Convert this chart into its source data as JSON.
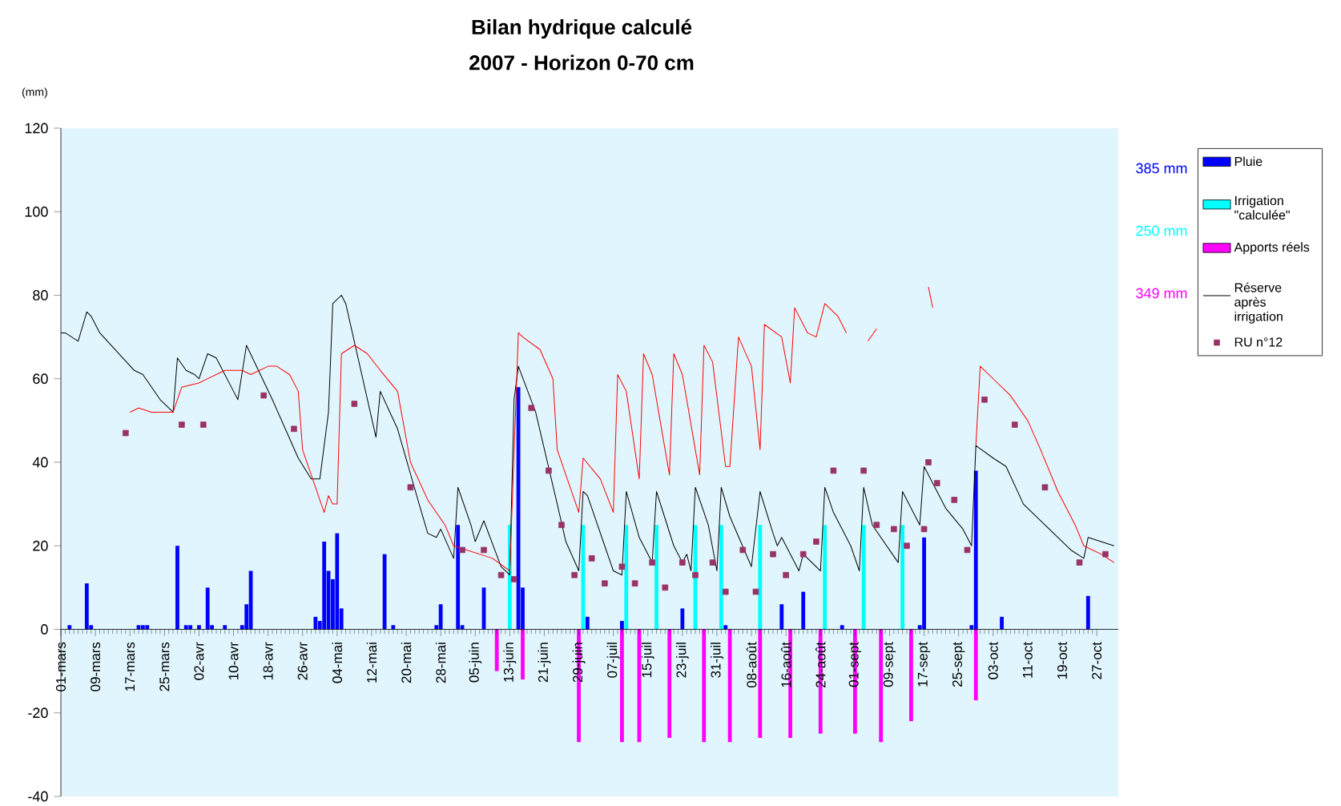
{
  "chart_data": {
    "type": "bar",
    "title": "Bilan hydrique calculé",
    "subtitle": "2007 - Horizon 0-70 cm",
    "ylabel": "(mm)",
    "annotations": [
      "385 mm",
      "250 mm",
      "349 mm"
    ],
    "legend": "right",
    "xlim": [
      "2007-03-01",
      "2007-11-01"
    ],
    "xticks": [
      {
        "value": "2007-03-01",
        "label": "01-mars"
      },
      {
        "value": "2007-03-09",
        "label": "09-mars"
      },
      {
        "value": "2007-03-17",
        "label": "17-mars"
      },
      {
        "value": "2007-03-25",
        "label": "25-mars"
      },
      {
        "value": "2007-04-02",
        "label": "02-avr"
      },
      {
        "value": "2007-04-10",
        "label": "10-avr"
      },
      {
        "value": "2007-04-18",
        "label": "18-avr"
      },
      {
        "value": "2007-04-26",
        "label": "26-avr"
      },
      {
        "value": "2007-05-04",
        "label": "04-mai"
      },
      {
        "value": "2007-05-12",
        "label": "12-mai"
      },
      {
        "value": "2007-05-20",
        "label": "20-mai"
      },
      {
        "value": "2007-05-28",
        "label": "28-mai"
      },
      {
        "value": "2007-06-05",
        "label": "05-juin"
      },
      {
        "value": "2007-06-13",
        "label": "13-juin"
      },
      {
        "value": "2007-06-21",
        "label": "21-juin"
      },
      {
        "value": "2007-06-29",
        "label": "29-juin"
      },
      {
        "value": "2007-07-07",
        "label": "07-juil"
      },
      {
        "value": "2007-07-15",
        "label": "15-juil"
      },
      {
        "value": "2007-07-23",
        "label": "23-juil"
      },
      {
        "value": "2007-07-31",
        "label": "31-juil"
      },
      {
        "value": "2007-08-08",
        "label": "08-août"
      },
      {
        "value": "2007-08-16",
        "label": "16-août"
      },
      {
        "value": "2007-08-24",
        "label": "24-août"
      },
      {
        "value": "2007-09-01",
        "label": "01-sept"
      },
      {
        "value": "2007-09-09",
        "label": "09-sept"
      },
      {
        "value": "2007-09-17",
        "label": "17-sept"
      },
      {
        "value": "2007-09-25",
        "label": "25-sept"
      },
      {
        "value": "2007-10-03",
        "label": "03-oct"
      },
      {
        "value": "2007-10-11",
        "label": "11-oct"
      },
      {
        "value": "2007-10-19",
        "label": "19-oct"
      },
      {
        "value": "2007-10-27",
        "label": "27-oct"
      }
    ],
    "ylim": [
      -40,
      120
    ],
    "yticks": [
      -40,
      -20,
      0,
      20,
      40,
      60,
      80,
      100,
      120
    ],
    "series": [
      {
        "name": "Pluie",
        "color": "#0000ff",
        "x": [
          "2007-03-03",
          "2007-03-07",
          "2007-03-08",
          "2007-03-19",
          "2007-03-20",
          "2007-03-21",
          "2007-03-28",
          "2007-03-30",
          "2007-03-31",
          "2007-04-02",
          "2007-04-04",
          "2007-04-05",
          "2007-04-08",
          "2007-04-12",
          "2007-04-13",
          "2007-04-14",
          "2007-04-29",
          "2007-04-30",
          "2007-05-01",
          "2007-05-02",
          "2007-05-03",
          "2007-05-04",
          "2007-05-05",
          "2007-05-15",
          "2007-05-17",
          "2007-05-27",
          "2007-05-28",
          "2007-06-01",
          "2007-06-02",
          "2007-06-07",
          "2007-06-15",
          "2007-06-16",
          "2007-07-01",
          "2007-07-09",
          "2007-07-23",
          "2007-08-02",
          "2007-08-15",
          "2007-08-20",
          "2007-08-29",
          "2007-09-16",
          "2007-09-17",
          "2007-09-28",
          "2007-09-29",
          "2007-10-05",
          "2007-10-25"
        ],
        "values": [
          1,
          11,
          1,
          1,
          1,
          1,
          20,
          1,
          1,
          1,
          10,
          1,
          1,
          1,
          6,
          14,
          3,
          2,
          21,
          14,
          12,
          23,
          5,
          18,
          1,
          1,
          6,
          25,
          1,
          10,
          58,
          10,
          3,
          2,
          5,
          1,
          6,
          9,
          1,
          1,
          22,
          1,
          38,
          3,
          8
        ]
      },
      {
        "name": "Irrigation \"calculée\"",
        "color": "#00ffff",
        "x": [
          "2007-06-13",
          "2007-06-30",
          "2007-07-10",
          "2007-07-17",
          "2007-07-26",
          "2007-08-01",
          "2007-08-10",
          "2007-08-25",
          "2007-09-03",
          "2007-09-12"
        ],
        "values": [
          25,
          25,
          25,
          25,
          25,
          25,
          25,
          25,
          25,
          25
        ]
      },
      {
        "name": "Apports réels",
        "color": "#ff00ff",
        "x": [
          "2007-06-10",
          "2007-06-16",
          "2007-06-29",
          "2007-07-09",
          "2007-07-13",
          "2007-07-20",
          "2007-07-28",
          "2007-08-03",
          "2007-08-10",
          "2007-08-17",
          "2007-08-24",
          "2007-09-01",
          "2007-09-07",
          "2007-09-14",
          "2007-09-29"
        ],
        "values": [
          -10,
          -12,
          -27,
          -27,
          -27,
          -26,
          -27,
          -27,
          -26,
          -26,
          -25,
          -25,
          -27,
          -22,
          -17
        ]
      },
      {
        "type": "line",
        "name": "Réserve après irrigation",
        "color": "#000000",
        "x": [
          "2007-03-01",
          "2007-03-02",
          "2007-03-05",
          "2007-03-07",
          "2007-03-08",
          "2007-03-10",
          "2007-03-18",
          "2007-03-20",
          "2007-03-24",
          "2007-03-27",
          "2007-03-28",
          "2007-03-30",
          "2007-04-01",
          "2007-04-02",
          "2007-04-04",
          "2007-04-06",
          "2007-04-10",
          "2007-04-11",
          "2007-04-13",
          "2007-04-19",
          "2007-04-25",
          "2007-04-28",
          "2007-04-30",
          "2007-05-02",
          "2007-05-03",
          "2007-05-05",
          "2007-05-06",
          "2007-05-13",
          "2007-05-14",
          "2007-05-18",
          "2007-05-23",
          "2007-05-25",
          "2007-05-27",
          "2007-05-28",
          "2007-05-31",
          "2007-06-01",
          "2007-06-04",
          "2007-06-05",
          "2007-06-07",
          "2007-06-11",
          "2007-06-13",
          "2007-06-14",
          "2007-06-15",
          "2007-06-19",
          "2007-06-24",
          "2007-06-26",
          "2007-06-29",
          "2007-06-30",
          "2007-07-01",
          "2007-07-05",
          "2007-07-07",
          "2007-07-09",
          "2007-07-10",
          "2007-07-13",
          "2007-07-16",
          "2007-07-17",
          "2007-07-21",
          "2007-07-23",
          "2007-07-24",
          "2007-07-25",
          "2007-07-26",
          "2007-07-29",
          "2007-07-31",
          "2007-08-01",
          "2007-08-03",
          "2007-08-08",
          "2007-08-10",
          "2007-08-13",
          "2007-08-14",
          "2007-08-15",
          "2007-08-18",
          "2007-08-19",
          "2007-08-20",
          "2007-08-24",
          "2007-08-25",
          "2007-08-27",
          "2007-08-31",
          "2007-09-02",
          "2007-09-03",
          "2007-09-05",
          "2007-09-11",
          "2007-09-12",
          "2007-09-16",
          "2007-09-17",
          "2007-09-22",
          "2007-09-26",
          "2007-09-28",
          "2007-09-29",
          "2007-10-03",
          "2007-10-06",
          "2007-10-10",
          "2007-10-16",
          "2007-10-21",
          "2007-10-24",
          "2007-10-25",
          "2007-10-28",
          "2007-10-31"
        ],
        "values": [
          71,
          71,
          69,
          76,
          75,
          71,
          62,
          61,
          55,
          52,
          65,
          62,
          61,
          60,
          66,
          65,
          57,
          55,
          68,
          55,
          41,
          36,
          36,
          52,
          78,
          80,
          78,
          46,
          57,
          48,
          30,
          23,
          22,
          24,
          17,
          34,
          25,
          21,
          26,
          15,
          13,
          55,
          63,
          52,
          30,
          21,
          14,
          33,
          32,
          20,
          14,
          13,
          33,
          22,
          16,
          33,
          20,
          16,
          18,
          14,
          34,
          25,
          14,
          34,
          27,
          15,
          33,
          23,
          20,
          22,
          16,
          14,
          18,
          14,
          34,
          28,
          20,
          14,
          34,
          25,
          16,
          33,
          25,
          39,
          29,
          24,
          20,
          44,
          41,
          39,
          30,
          24,
          19,
          17,
          22,
          21,
          20
        ]
      },
      {
        "type": "line",
        "color": "#ff0000",
        "x": [
          "2007-03-17",
          "2007-03-19",
          "2007-03-22",
          "2007-03-24",
          "2007-03-27",
          "2007-03-29",
          "2007-04-02",
          "2007-04-04",
          "2007-04-08",
          "2007-04-12",
          "2007-04-14",
          "2007-04-18",
          "2007-04-20",
          "2007-04-23",
          "2007-04-25",
          "2007-04-26",
          "2007-05-01",
          "2007-05-02",
          "2007-05-03",
          "2007-05-04",
          "2007-05-05",
          "2007-05-08",
          "2007-05-11",
          "2007-05-14",
          "2007-05-18",
          "2007-05-21",
          "2007-05-25",
          "2007-05-29",
          "2007-05-31",
          "2007-06-06",
          "2007-06-09",
          "2007-06-13",
          "2007-06-15",
          "2007-06-16",
          "2007-06-20",
          "2007-06-23",
          "2007-06-24",
          "2007-06-29",
          "2007-06-30",
          "2007-07-04",
          "2007-07-07",
          "2007-07-08",
          "2007-07-10",
          "2007-07-13",
          "2007-07-14",
          "2007-07-16",
          "2007-07-20",
          "2007-07-21",
          "2007-07-23",
          "2007-07-27",
          "2007-07-28",
          "2007-07-30",
          "2007-08-02",
          "2007-08-03",
          "2007-08-05",
          "2007-08-08",
          "2007-08-10",
          "2007-08-11",
          "2007-08-15",
          "2007-08-17",
          "2007-08-18",
          "2007-08-21",
          "2007-08-23",
          "2007-08-25",
          "2007-08-28",
          "2007-08-30",
          "2007-09-01",
          "2007-09-04",
          "2007-09-06",
          "2007-09-07",
          "2007-09-18",
          "2007-09-19",
          "2007-09-20",
          "2007-09-29",
          "2007-09-30",
          "2007-10-03",
          "2007-10-07",
          "2007-10-11",
          "2007-10-14",
          "2007-10-18",
          "2007-10-22",
          "2007-10-24",
          "2007-10-28",
          "2007-10-31"
        ],
        "values": [
          52,
          53,
          52,
          52,
          52,
          58,
          59,
          60,
          62,
          62,
          61,
          63,
          63,
          61,
          57,
          43,
          28,
          32,
          30,
          30,
          66,
          68,
          66,
          62,
          57,
          40,
          31,
          25,
          20,
          18,
          17,
          14,
          71,
          70,
          67,
          60,
          43,
          28,
          41,
          36,
          28,
          61,
          57,
          36,
          66,
          61,
          37,
          66,
          61,
          37,
          68,
          64,
          39,
          39,
          70,
          63,
          43,
          73,
          70,
          59,
          77,
          71,
          70,
          78,
          75,
          71,
          null,
          69,
          72,
          null,
          82,
          77,
          null,
          44,
          63,
          60,
          56,
          50,
          43,
          33,
          25,
          20,
          18,
          16
        ]
      },
      {
        "type": "scatter",
        "name": "RU n°12",
        "color": "#993366",
        "marker": "square",
        "x": [
          "2007-03-16",
          "2007-03-29",
          "2007-04-03",
          "2007-04-17",
          "2007-04-24",
          "2007-05-08",
          "2007-05-21",
          "2007-06-02",
          "2007-06-07",
          "2007-06-11",
          "2007-06-14",
          "2007-06-18",
          "2007-06-22",
          "2007-06-25",
          "2007-06-28",
          "2007-07-02",
          "2007-07-05",
          "2007-07-09",
          "2007-07-12",
          "2007-07-16",
          "2007-07-19",
          "2007-07-23",
          "2007-07-26",
          "2007-07-30",
          "2007-08-02",
          "2007-08-06",
          "2007-08-09",
          "2007-08-13",
          "2007-08-16",
          "2007-08-20",
          "2007-08-23",
          "2007-08-27",
          "2007-09-03",
          "2007-09-06",
          "2007-09-10",
          "2007-09-13",
          "2007-09-17",
          "2007-09-18",
          "2007-09-20",
          "2007-09-24",
          "2007-09-27",
          "2007-10-01",
          "2007-10-08",
          "2007-10-15",
          "2007-10-23",
          "2007-10-29"
        ],
        "values": [
          47,
          49,
          49,
          56,
          48,
          54,
          34,
          19,
          19,
          13,
          12,
          53,
          38,
          25,
          13,
          17,
          11,
          15,
          11,
          16,
          10,
          16,
          13,
          16,
          9,
          19,
          9,
          18,
          13,
          18,
          21,
          38,
          38,
          25,
          24,
          20,
          24,
          40,
          35,
          31,
          19,
          55,
          49,
          34,
          16,
          18
        ]
      }
    ]
  }
}
